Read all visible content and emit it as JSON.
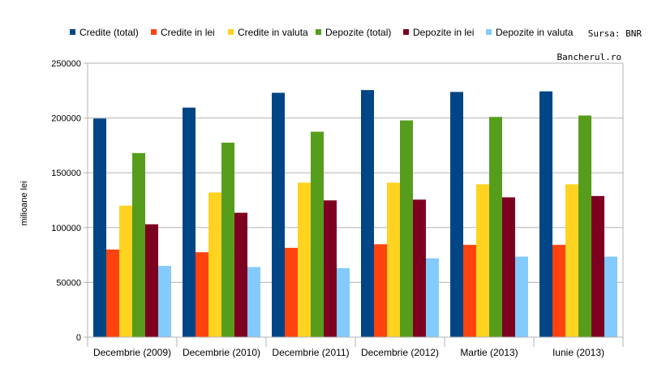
{
  "chart_data": {
    "type": "bar",
    "title": "",
    "xlabel": "",
    "ylabel": "milioane lei",
    "ylim": [
      0,
      250000
    ],
    "yticks": [
      0,
      50000,
      100000,
      150000,
      200000,
      250000
    ],
    "grid": true,
    "legend_position": "top",
    "source": "Sursa: BNR",
    "watermark": "Bancherul.ro",
    "categories": [
      "Decembrie (2009)",
      "Decembrie (2010)",
      "Decembrie (2011)",
      "Decembrie (2012)",
      "Martie (2013)",
      "Iunie (2013)"
    ],
    "series": [
      {
        "name": "Credite (total)",
        "color": "#004586",
        "values": [
          199500,
          209500,
          223000,
          225500,
          223800,
          224300
        ]
      },
      {
        "name": "Credite in lei",
        "color": "#ff420e",
        "values": [
          80000,
          77500,
          81500,
          84800,
          84200,
          84200
        ]
      },
      {
        "name": "Credite in valuta",
        "color": "#ffd320",
        "values": [
          120000,
          132000,
          141000,
          141000,
          139500,
          139500
        ]
      },
      {
        "name": "Depozite (total)",
        "color": "#579d1c",
        "values": [
          168000,
          177500,
          187500,
          197800,
          201000,
          202300
        ]
      },
      {
        "name": "Depozite in lei",
        "color": "#7e0021",
        "values": [
          103000,
          113500,
          124800,
          125500,
          127600,
          128800
        ]
      },
      {
        "name": "Depozite in valuta",
        "color": "#83caff",
        "values": [
          65000,
          64000,
          63000,
          72000,
          73500,
          73500
        ]
      }
    ]
  }
}
